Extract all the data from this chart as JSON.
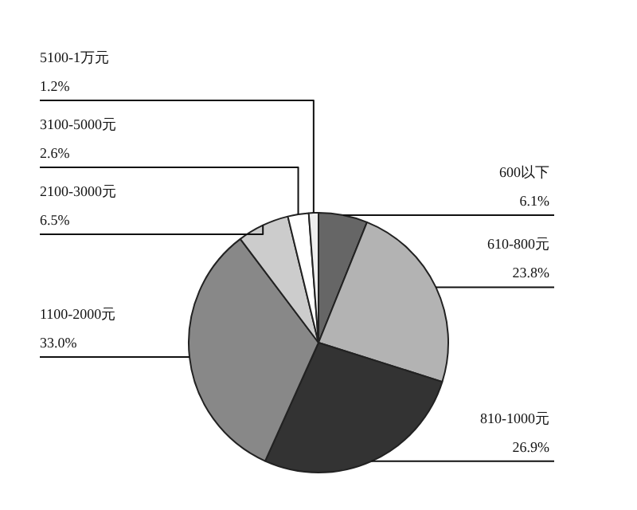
{
  "chart_data": {
    "type": "pie",
    "categories": [
      "600以下",
      "610-800元",
      "810-1000元",
      "1100-2000元",
      "2100-3000元",
      "3100-5000元",
      "5100-1万元"
    ],
    "values": [
      6.1,
      23.8,
      26.9,
      33.0,
      6.5,
      2.6,
      1.2
    ],
    "colors": [
      "#666666",
      "#b3b3b3",
      "#333333",
      "#888888",
      "#cccccc",
      "#ffffff",
      "#eeeeee"
    ],
    "value_labels": [
      "6.1%",
      "23.8%",
      "26.9%",
      "33.0%",
      "6.5%",
      "2.6%",
      "1.2%"
    ],
    "legend": false
  }
}
